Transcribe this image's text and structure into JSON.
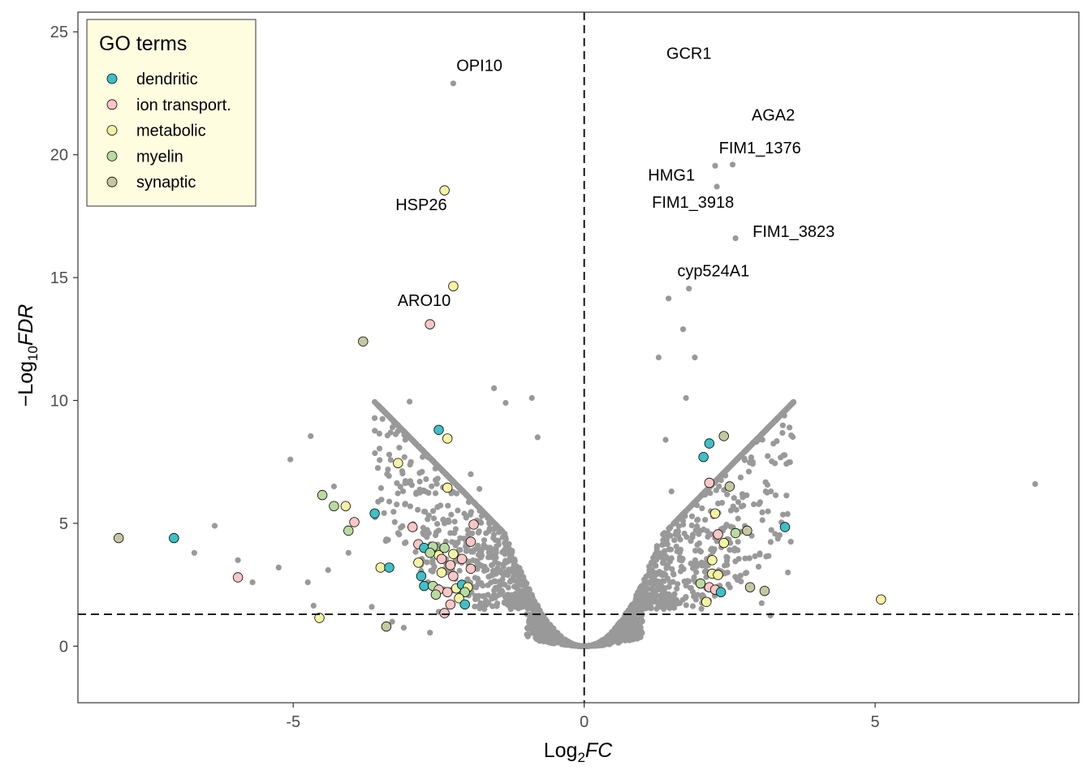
{
  "chart_data": {
    "type": "scatter",
    "title": "",
    "xlabel": {
      "base": "Log",
      "sub": "2",
      "var": "FC"
    },
    "ylabel": {
      "prefix": "−Log",
      "sub": "10",
      "var": "FDR"
    },
    "xlim": [
      -8.7,
      8.5
    ],
    "ylim": [
      -2.3,
      25.8
    ],
    "x_ticks": [
      {
        "value": -5,
        "label": "-5"
      },
      {
        "value": 0,
        "label": "0"
      },
      {
        "value": 5,
        "label": "5"
      }
    ],
    "y_ticks": [
      {
        "value": 0,
        "label": "0"
      },
      {
        "value": 5,
        "label": "5"
      },
      {
        "value": 10,
        "label": "10"
      },
      {
        "value": 15,
        "label": "15"
      },
      {
        "value": 20,
        "label": "20"
      },
      {
        "value": 25,
        "label": "25"
      }
    ],
    "reference_lines": {
      "vertical_x": 0,
      "horizontal_y": 1.3,
      "style": "dashed"
    },
    "grid": false,
    "background_color": "#999999",
    "legend": {
      "title": "GO terms",
      "position": "top-left",
      "background": "#fffde0",
      "entries": [
        {
          "label": "dendritic",
          "color": "#3fbfc6"
        },
        {
          "label": "ion transport.",
          "color": "#fcc6c6"
        },
        {
          "label": "metabolic",
          "color": "#f5f3a2"
        },
        {
          "label": "myelin",
          "color": "#b8dba0"
        },
        {
          "label": "synaptic",
          "color": "#c6c6a0"
        }
      ]
    },
    "background_points": [
      [
        -2.25,
        22.9
      ],
      [
        2.25,
        19.55
      ],
      [
        2.55,
        19.6
      ],
      [
        2.28,
        18.7
      ],
      [
        1.45,
        14.15
      ],
      [
        1.8,
        14.55
      ],
      [
        1.7,
        12.9
      ],
      [
        1.28,
        11.75
      ],
      [
        1.9,
        11.75
      ],
      [
        2.6,
        16.6
      ],
      [
        -1.55,
        10.5
      ],
      [
        -1.35,
        9.9
      ],
      [
        1.75,
        10.1
      ],
      [
        -3.0,
        9.95
      ],
      [
        -0.9,
        10.1
      ],
      [
        -4.7,
        8.55
      ],
      [
        -5.05,
        7.6
      ],
      [
        -0.8,
        8.5
      ],
      [
        3.55,
        4.25
      ],
      [
        7.75,
        6.6
      ],
      [
        -6.35,
        4.9
      ],
      [
        -6.7,
        3.8
      ],
      [
        -5.25,
        3.2
      ],
      [
        -5.95,
        3.5
      ],
      [
        -5.7,
        2.6
      ],
      [
        -4.65,
        1.65
      ],
      [
        -4.75,
        2.6
      ],
      [
        -4.4,
        3.1
      ],
      [
        -4.3,
        6.5
      ],
      [
        -4.05,
        3.8
      ],
      [
        -3.65,
        1.6
      ],
      [
        -3.3,
        1.0
      ],
      [
        -3.1,
        0.75
      ],
      [
        -2.65,
        0.55
      ],
      [
        -2.5,
        1.4
      ],
      [
        3.2,
        1.25
      ],
      [
        1.7,
        5.1
      ],
      [
        1.5,
        6.3
      ],
      [
        1.4,
        8.4
      ],
      [
        3.05,
        1.75
      ],
      [
        3.5,
        3.0
      ],
      [
        -1.95,
        7.0
      ],
      [
        -1.8,
        6.4
      ]
    ],
    "cloud": {
      "seed": 11,
      "count": 2600,
      "x_range": [
        -3.6,
        3.6
      ]
    },
    "highlighted": [
      {
        "x": -8.0,
        "y": 4.4,
        "group": "synaptic"
      },
      {
        "x": -7.05,
        "y": 4.4,
        "group": "dendritic"
      },
      {
        "x": -5.95,
        "y": 2.8,
        "group": "ion transport."
      },
      {
        "x": -4.5,
        "y": 6.15,
        "group": "myelin"
      },
      {
        "x": -4.3,
        "y": 5.7,
        "group": "myelin"
      },
      {
        "x": -4.1,
        "y": 5.7,
        "group": "metabolic"
      },
      {
        "x": -3.95,
        "y": 5.05,
        "group": "ion transport."
      },
      {
        "x": -4.05,
        "y": 4.7,
        "group": "myelin"
      },
      {
        "x": -3.8,
        "y": 12.4,
        "group": "synaptic"
      },
      {
        "x": -4.55,
        "y": 1.15,
        "group": "metabolic"
      },
      {
        "x": -3.6,
        "y": 5.4,
        "group": "dendritic"
      },
      {
        "x": -3.2,
        "y": 7.45,
        "group": "metabolic"
      },
      {
        "x": -3.5,
        "y": 3.2,
        "group": "metabolic"
      },
      {
        "x": -3.35,
        "y": 3.2,
        "group": "dendritic"
      },
      {
        "x": -3.4,
        "y": 0.8,
        "group": "synaptic"
      },
      {
        "x": -2.95,
        "y": 4.85,
        "group": "ion transport."
      },
      {
        "x": -2.85,
        "y": 4.15,
        "group": "ion transport."
      },
      {
        "x": -2.85,
        "y": 3.4,
        "group": "metabolic"
      },
      {
        "x": -2.75,
        "y": 4.0,
        "group": "dendritic"
      },
      {
        "x": -2.6,
        "y": 4.05,
        "group": "myelin"
      },
      {
        "x": -2.5,
        "y": 3.7,
        "group": "metabolic"
      },
      {
        "x": -2.4,
        "y": 4.0,
        "group": "myelin"
      },
      {
        "x": -2.25,
        "y": 3.75,
        "group": "metabolic"
      },
      {
        "x": -2.1,
        "y": 3.55,
        "group": "ion transport."
      },
      {
        "x": -2.65,
        "y": 3.8,
        "group": "myelin"
      },
      {
        "x": -2.45,
        "y": 3.55,
        "group": "ion transport."
      },
      {
        "x": -2.3,
        "y": 3.3,
        "group": "ion transport."
      },
      {
        "x": -2.45,
        "y": 3.0,
        "group": "metabolic"
      },
      {
        "x": -2.8,
        "y": 2.85,
        "group": "dendritic"
      },
      {
        "x": -2.75,
        "y": 2.45,
        "group": "dendritic"
      },
      {
        "x": -2.6,
        "y": 2.45,
        "group": "myelin"
      },
      {
        "x": -2.5,
        "y": 2.3,
        "group": "ion transport."
      },
      {
        "x": -2.35,
        "y": 2.2,
        "group": "ion transport."
      },
      {
        "x": -2.3,
        "y": 1.7,
        "group": "ion transport."
      },
      {
        "x": -2.4,
        "y": 1.35,
        "group": "ion transport."
      },
      {
        "x": -2.2,
        "y": 2.35,
        "group": "metabolic"
      },
      {
        "x": -2.1,
        "y": 2.5,
        "group": "dendritic"
      },
      {
        "x": -2.0,
        "y": 2.4,
        "group": "metabolic"
      },
      {
        "x": -2.05,
        "y": 2.2,
        "group": "myelin"
      },
      {
        "x": -2.15,
        "y": 1.95,
        "group": "metabolic"
      },
      {
        "x": -2.05,
        "y": 1.7,
        "group": "dendritic"
      },
      {
        "x": -1.95,
        "y": 3.15,
        "group": "ion transport."
      },
      {
        "x": -1.95,
        "y": 4.25,
        "group": "ion transport."
      },
      {
        "x": -2.25,
        "y": 2.85,
        "group": "ion transport."
      },
      {
        "x": -2.55,
        "y": 2.1,
        "group": "myelin"
      },
      {
        "x": -2.5,
        "y": 8.8,
        "group": "dendritic"
      },
      {
        "x": -2.35,
        "y": 8.45,
        "group": "metabolic"
      },
      {
        "x": -2.35,
        "y": 6.45,
        "group": "metabolic"
      },
      {
        "x": -1.9,
        "y": 4.95,
        "group": "ion transport."
      },
      {
        "x": -2.65,
        "y": 13.1,
        "group": "ion transport."
      },
      {
        "x": -2.25,
        "y": 14.65,
        "group": "metabolic"
      },
      {
        "x": -2.4,
        "y": 18.55,
        "group": "metabolic"
      },
      {
        "x": 2.05,
        "y": 7.7,
        "group": "dendritic"
      },
      {
        "x": 2.15,
        "y": 8.25,
        "group": "dendritic"
      },
      {
        "x": 2.4,
        "y": 8.55,
        "group": "synaptic"
      },
      {
        "x": 2.15,
        "y": 6.65,
        "group": "ion transport."
      },
      {
        "x": 2.5,
        "y": 6.5,
        "group": "synaptic"
      },
      {
        "x": 2.25,
        "y": 5.4,
        "group": "metabolic"
      },
      {
        "x": 2.3,
        "y": 4.55,
        "group": "ion transport."
      },
      {
        "x": 2.4,
        "y": 4.2,
        "group": "metabolic"
      },
      {
        "x": 2.6,
        "y": 4.6,
        "group": "myelin"
      },
      {
        "x": 2.8,
        "y": 4.7,
        "group": "synaptic"
      },
      {
        "x": 3.45,
        "y": 4.85,
        "group": "dendritic"
      },
      {
        "x": 2.2,
        "y": 3.5,
        "group": "metabolic"
      },
      {
        "x": 2.2,
        "y": 2.95,
        "group": "metabolic"
      },
      {
        "x": 2.3,
        "y": 2.9,
        "group": "metabolic"
      },
      {
        "x": 2.0,
        "y": 2.55,
        "group": "myelin"
      },
      {
        "x": 2.15,
        "y": 2.4,
        "group": "ion transport."
      },
      {
        "x": 2.25,
        "y": 2.3,
        "group": "ion transport."
      },
      {
        "x": 2.35,
        "y": 2.2,
        "group": "dendritic"
      },
      {
        "x": 2.1,
        "y": 1.8,
        "group": "metabolic"
      },
      {
        "x": 2.85,
        "y": 2.4,
        "group": "synaptic"
      },
      {
        "x": 3.1,
        "y": 2.25,
        "group": "synaptic"
      },
      {
        "x": 5.1,
        "y": 1.9,
        "group": "metabolic"
      }
    ],
    "annotations": [
      {
        "text": "OPI10",
        "x": -1.8,
        "y": 23.4
      },
      {
        "text": "GCR1",
        "x": 1.8,
        "y": 23.9
      },
      {
        "text": "AGA2",
        "x": 3.25,
        "y": 21.4
      },
      {
        "text": "FIM1_1376",
        "x": 3.02,
        "y": 20.05
      },
      {
        "text": "HMG1",
        "x": 1.5,
        "y": 18.95
      },
      {
        "text": "FIM1_3918",
        "x": 1.87,
        "y": 17.85
      },
      {
        "text": "FIM1_3823",
        "x": 3.6,
        "y": 16.65
      },
      {
        "text": "HSP26",
        "x": -2.8,
        "y": 17.75
      },
      {
        "text": "cyp524A1",
        "x": 2.22,
        "y": 15.05
      },
      {
        "text": "ARO10",
        "x": -2.75,
        "y": 13.85
      }
    ]
  }
}
